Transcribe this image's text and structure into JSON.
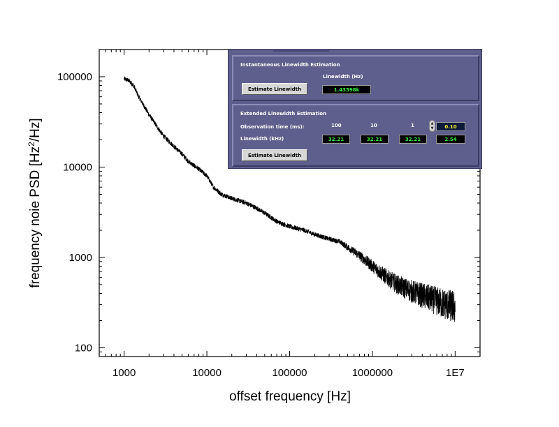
{
  "chart_data": {
    "type": "line",
    "xlabel": "offset frequency [Hz]",
    "ylabel_prefix": "frequency noie PSD [Hz",
    "ylabel_sup": "2",
    "ylabel_suffix": "/Hz]",
    "xscale": "log",
    "yscale": "log",
    "xlim": [
      500,
      20000000
    ],
    "ylim": [
      80,
      200000
    ],
    "x_ticks": [
      {
        "value": 1000,
        "label": "1000"
      },
      {
        "value": 10000,
        "label": "10000"
      },
      {
        "value": 100000,
        "label": "100000"
      },
      {
        "value": 1000000,
        "label": "1000000"
      },
      {
        "value": 10000000,
        "label": "1E7"
      }
    ],
    "y_ticks": [
      {
        "value": 100,
        "label": "100"
      },
      {
        "value": 1000,
        "label": "1000"
      },
      {
        "value": 10000,
        "label": "10000"
      },
      {
        "value": 100000,
        "label": "100000"
      }
    ],
    "grid": false,
    "series": [
      {
        "color": "#000000",
        "x": [
          1000,
          1150,
          1300,
          1500,
          1800,
          2000,
          2500,
          3000,
          4000,
          5000,
          6000,
          8000,
          10000,
          12000,
          15000,
          20000,
          30000,
          40000,
          50000,
          70000,
          100000,
          150000,
          200000,
          300000,
          400000,
          500000,
          700000,
          1000000,
          1500000,
          2000000,
          3000000,
          5000000,
          7000000,
          10000000
        ],
        "y": [
          95000,
          90000,
          80000,
          60000,
          45000,
          38000,
          28000,
          22000,
          17000,
          14000,
          11500,
          9500,
          8000,
          6000,
          5000,
          4500,
          4000,
          3500,
          3100,
          2500,
          2200,
          2000,
          1800,
          1600,
          1500,
          1300,
          1050,
          800,
          600,
          500,
          420,
          350,
          310,
          280
        ]
      }
    ]
  },
  "panel": {
    "instant": {
      "title": "Instantaneous Linewidth Estimation",
      "linewidth_label": "Linewidth (Hz)",
      "button": "Estimate Linewidth",
      "value": "1.43398k"
    },
    "extended": {
      "title": "Extended Linewidth Estimation",
      "obs_label": "Observation time (ms):",
      "lw_label": "Linewidth (kHz)",
      "obs_values": [
        "100",
        "10",
        "1"
      ],
      "custom_obs": "0.10",
      "lw_values": [
        "32.21",
        "32.21",
        "32.21",
        "2.54"
      ],
      "button": "Estimate Linewidth"
    },
    "colors": {
      "background": "#5f5f8e",
      "indicator_text": "#34f33a",
      "control_text": "#f3ef30"
    }
  }
}
